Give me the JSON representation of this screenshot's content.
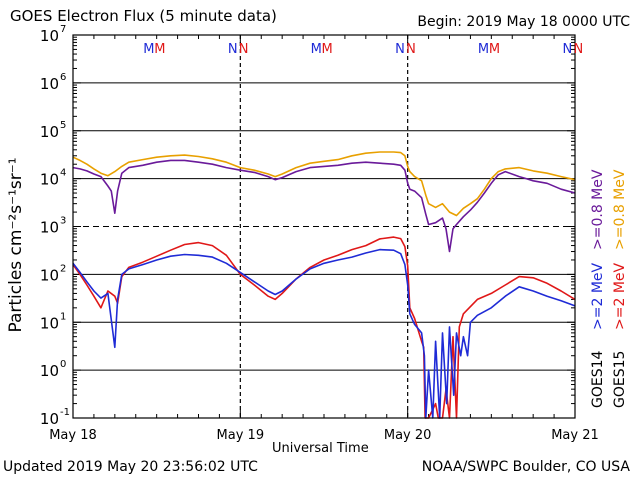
{
  "header": {
    "title": "GOES Electron Flux (5 minute data)",
    "begin": "Begin: 2019 May 18 0000 UTC"
  },
  "footer": {
    "updated": "Updated 2019 May 20 23:56:02 UTC",
    "source": "NOAA/SWPC Boulder, CO USA"
  },
  "chart_data": {
    "type": "line",
    "title": "GOES Electron Flux (5 minute data)",
    "xlabel": "Universal Time",
    "ylabel": "Particles cm⁻²s⁻¹sr⁻¹",
    "yscale": "log",
    "ylim": [
      0.1,
      10000000
    ],
    "xlim": [
      0,
      72
    ],
    "x_units": "hours since 2019 May 18 0000 UTC",
    "x_tick_labels": [
      "May 18",
      "May 19",
      "May 20",
      "May 21"
    ],
    "y_tick_labels": [
      {
        "base": "10",
        "exp": "-1",
        "value": 0.1
      },
      {
        "base": "10",
        "exp": "0",
        "value": 1
      },
      {
        "base": "10",
        "exp": "1",
        "value": 10
      },
      {
        "base": "10",
        "exp": "2",
        "value": 100
      },
      {
        "base": "10",
        "exp": "3",
        "value": 1000
      },
      {
        "base": "10",
        "exp": "4",
        "value": 10000
      },
      {
        "base": "10",
        "exp": "5",
        "value": 100000
      },
      {
        "base": "10",
        "exp": "6",
        "value": 1000000
      },
      {
        "base": "10",
        "exp": "7",
        "value": 10000000
      }
    ],
    "threshold_line": 1000,
    "grid": true,
    "day_markers": [
      {
        "labels": [
          {
            "text": "M",
            "color": "#1f2bd6"
          },
          {
            "text": "M",
            "color": "#e01818"
          },
          {
            "text": "N",
            "color": "#1f2bd6"
          },
          {
            "text": "N",
            "color": "#e01818"
          }
        ]
      },
      {
        "labels": [
          {
            "text": "M",
            "color": "#1f2bd6"
          },
          {
            "text": "M",
            "color": "#e01818"
          },
          {
            "text": "N",
            "color": "#1f2bd6"
          },
          {
            "text": "N",
            "color": "#e01818"
          }
        ]
      },
      {
        "labels": [
          {
            "text": "M",
            "color": "#1f2bd6"
          },
          {
            "text": "M",
            "color": "#e01818"
          },
          {
            "text": "N",
            "color": "#1f2bd6"
          },
          {
            "text": "N",
            "color": "#e01818"
          }
        ]
      }
    ],
    "legend": {
      "placement": "right",
      "entries": [
        {
          "text": ">=0.8 MeV",
          "color": "#e8a000"
        },
        {
          "text": ">=0.8 MeV",
          "color": "#6a1a9a"
        },
        {
          "text": ">=2 MeV",
          "color": "#e01818"
        },
        {
          "text": ">=2 MeV",
          "color": "#1f2bd6"
        },
        {
          "text": "GOES15",
          "color": "#000000"
        },
        {
          "text": "GOES14",
          "color": "#000000"
        }
      ]
    },
    "series": [
      {
        "name": ">=0.8 MeV GOES15",
        "color": "#e8a000",
        "points": [
          [
            0,
            28000
          ],
          [
            1,
            24000
          ],
          [
            2,
            20000
          ],
          [
            3,
            16000
          ],
          [
            4,
            13000
          ],
          [
            5,
            11500
          ],
          [
            6,
            14000
          ],
          [
            7,
            18000
          ],
          [
            8,
            22000
          ],
          [
            10,
            25000
          ],
          [
            12,
            28000
          ],
          [
            14,
            30000
          ],
          [
            16,
            31000
          ],
          [
            18,
            29000
          ],
          [
            20,
            26000
          ],
          [
            22,
            22000
          ],
          [
            24,
            17000
          ],
          [
            26,
            15000
          ],
          [
            28,
            12500
          ],
          [
            29,
            11000
          ],
          [
            30,
            12500
          ],
          [
            32,
            17000
          ],
          [
            34,
            21000
          ],
          [
            36,
            23000
          ],
          [
            38,
            25000
          ],
          [
            40,
            30000
          ],
          [
            42,
            34000
          ],
          [
            44,
            36000
          ],
          [
            46,
            36000
          ],
          [
            47,
            35000
          ],
          [
            47.6,
            30000
          ],
          [
            48,
            18000
          ],
          [
            48.3,
            14000
          ],
          [
            49,
            11000
          ],
          [
            50,
            9000
          ],
          [
            50.6,
            4500
          ],
          [
            51,
            3000
          ],
          [
            52,
            2500
          ],
          [
            53,
            3000
          ],
          [
            54,
            2000
          ],
          [
            55,
            1700
          ],
          [
            56,
            2400
          ],
          [
            57,
            3000
          ],
          [
            58,
            3800
          ],
          [
            59,
            6000
          ],
          [
            60,
            10000
          ],
          [
            61,
            14000
          ],
          [
            62,
            16000
          ],
          [
            64,
            17000
          ],
          [
            66,
            14500
          ],
          [
            68,
            13000
          ],
          [
            70,
            11000
          ],
          [
            72,
            9500
          ]
        ]
      },
      {
        "name": ">=0.8 MeV GOES14",
        "color": "#6a1a9a",
        "points": [
          [
            0,
            17000
          ],
          [
            1,
            16000
          ],
          [
            2,
            14500
          ],
          [
            3,
            12500
          ],
          [
            4,
            11000
          ],
          [
            5,
            7000
          ],
          [
            5.5,
            5500
          ],
          [
            6,
            1900
          ],
          [
            6.4,
            5500
          ],
          [
            7,
            13000
          ],
          [
            8,
            17000
          ],
          [
            10,
            19000
          ],
          [
            12,
            22000
          ],
          [
            14,
            24000
          ],
          [
            16,
            24000
          ],
          [
            18,
            22000
          ],
          [
            20,
            20000
          ],
          [
            22,
            17000
          ],
          [
            24,
            15000
          ],
          [
            26,
            13500
          ],
          [
            28,
            11000
          ],
          [
            29,
            9500
          ],
          [
            30,
            10500
          ],
          [
            32,
            14000
          ],
          [
            34,
            17000
          ],
          [
            36,
            18000
          ],
          [
            38,
            19000
          ],
          [
            40,
            21000
          ],
          [
            42,
            22000
          ],
          [
            44,
            21000
          ],
          [
            46,
            20000
          ],
          [
            47,
            19000
          ],
          [
            47.6,
            15000
          ],
          [
            48,
            8000
          ],
          [
            48.3,
            6000
          ],
          [
            49,
            5500
          ],
          [
            50,
            4000
          ],
          [
            50.6,
            1800
          ],
          [
            51,
            1100
          ],
          [
            52,
            1200
          ],
          [
            53,
            1500
          ],
          [
            53.5,
            900
          ],
          [
            54,
            300
          ],
          [
            54.5,
            900
          ],
          [
            55,
            1100
          ],
          [
            56,
            1600
          ],
          [
            57,
            2200
          ],
          [
            58,
            3200
          ],
          [
            59,
            5000
          ],
          [
            60,
            8000
          ],
          [
            61,
            12000
          ],
          [
            62,
            14000
          ],
          [
            64,
            11000
          ],
          [
            65,
            10000
          ],
          [
            66,
            9000
          ],
          [
            68,
            8000
          ],
          [
            70,
            6000
          ],
          [
            72,
            5000
          ]
        ]
      },
      {
        "name": ">=2 MeV GOES15",
        "color": "#e01818",
        "points": [
          [
            0,
            160
          ],
          [
            1,
            100
          ],
          [
            2,
            60
          ],
          [
            3,
            35
          ],
          [
            4,
            20
          ],
          [
            5,
            45
          ],
          [
            6,
            35
          ],
          [
            6.4,
            25
          ],
          [
            7,
            90
          ],
          [
            8,
            140
          ],
          [
            10,
            180
          ],
          [
            12,
            240
          ],
          [
            14,
            320
          ],
          [
            16,
            420
          ],
          [
            18,
            460
          ],
          [
            20,
            400
          ],
          [
            22,
            250
          ],
          [
            24,
            100
          ],
          [
            26,
            60
          ],
          [
            28,
            35
          ],
          [
            29,
            30
          ],
          [
            30,
            40
          ],
          [
            32,
            80
          ],
          [
            34,
            140
          ],
          [
            36,
            200
          ],
          [
            38,
            250
          ],
          [
            40,
            330
          ],
          [
            42,
            400
          ],
          [
            44,
            550
          ],
          [
            46,
            600
          ],
          [
            47,
            560
          ],
          [
            47.6,
            380
          ],
          [
            48,
            150
          ],
          [
            48.3,
            20
          ],
          [
            49,
            12
          ],
          [
            50,
            4
          ],
          [
            50.3,
            3
          ],
          [
            50.5,
            0.1
          ],
          [
            51,
            0.1
          ],
          [
            52,
            0.2
          ],
          [
            52.4,
            0.1
          ],
          [
            53,
            0.1
          ],
          [
            53.5,
            0.4
          ],
          [
            54,
            0.1
          ],
          [
            54.5,
            5
          ],
          [
            55,
            0.1
          ],
          [
            55.4,
            8
          ],
          [
            56,
            15
          ],
          [
            58,
            30
          ],
          [
            60,
            40
          ],
          [
            62,
            60
          ],
          [
            64,
            90
          ],
          [
            66,
            85
          ],
          [
            68,
            65
          ],
          [
            70,
            45
          ],
          [
            72,
            30
          ]
        ]
      },
      {
        "name": ">=2 MeV GOES14",
        "color": "#1f2bd6",
        "points": [
          [
            0,
            170
          ],
          [
            1,
            110
          ],
          [
            2,
            70
          ],
          [
            3,
            45
          ],
          [
            4,
            32
          ],
          [
            5,
            40
          ],
          [
            6,
            3
          ],
          [
            6.4,
            30
          ],
          [
            7,
            100
          ],
          [
            8,
            130
          ],
          [
            10,
            160
          ],
          [
            12,
            200
          ],
          [
            14,
            240
          ],
          [
            16,
            260
          ],
          [
            18,
            250
          ],
          [
            20,
            230
          ],
          [
            22,
            170
          ],
          [
            24,
            110
          ],
          [
            26,
            70
          ],
          [
            28,
            45
          ],
          [
            29,
            38
          ],
          [
            30,
            45
          ],
          [
            32,
            80
          ],
          [
            34,
            130
          ],
          [
            36,
            170
          ],
          [
            38,
            200
          ],
          [
            40,
            230
          ],
          [
            42,
            280
          ],
          [
            44,
            330
          ],
          [
            46,
            320
          ],
          [
            47,
            270
          ],
          [
            47.6,
            160
          ],
          [
            48,
            60
          ],
          [
            48.3,
            15
          ],
          [
            49,
            9
          ],
          [
            50,
            6
          ],
          [
            50.4,
            2
          ],
          [
            50.6,
            0.1
          ],
          [
            51,
            1
          ],
          [
            51.6,
            0.1
          ],
          [
            52,
            4
          ],
          [
            52.6,
            0.1
          ],
          [
            53,
            6
          ],
          [
            53.6,
            0.2
          ],
          [
            54,
            8
          ],
          [
            54.6,
            0.3
          ],
          [
            55,
            6
          ],
          [
            55.6,
            2
          ],
          [
            56,
            5
          ],
          [
            56.6,
            2
          ],
          [
            57,
            10
          ],
          [
            58,
            14
          ],
          [
            60,
            20
          ],
          [
            62,
            35
          ],
          [
            64,
            55
          ],
          [
            66,
            45
          ],
          [
            68,
            35
          ],
          [
            70,
            28
          ],
          [
            72,
            22
          ]
        ]
      }
    ]
  }
}
